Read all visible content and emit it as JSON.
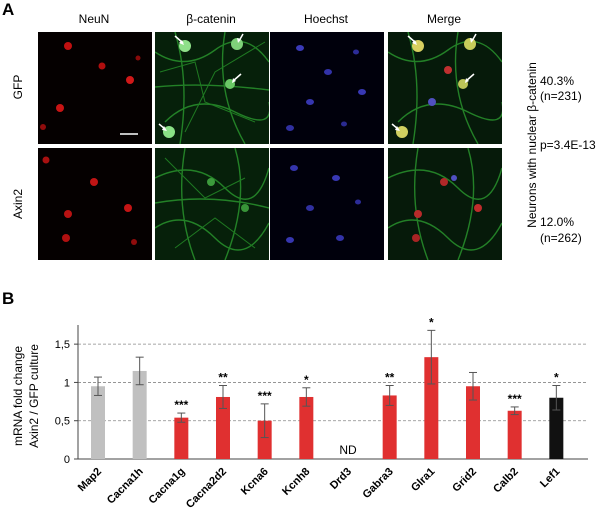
{
  "panelA": {
    "letter": "A",
    "columns": [
      "NeuN",
      "β-catenin",
      "Hoechst",
      "Merge"
    ],
    "rows": [
      "GFP",
      "Axin2"
    ],
    "right_axis_label": "Neurons with nuclear β-catenin",
    "stats": {
      "gfp_pct": "40.3%",
      "gfp_n": "(n=231)",
      "pvalue": "p=3.4E-13",
      "axin_pct": "12.0%",
      "axin_n": "(n=262)"
    }
  },
  "panelB": {
    "letter": "B",
    "ylabel_line1": "mRNA fold change",
    "ylabel_line2": "Axin2 / GFP culture"
  },
  "chart_data": {
    "type": "bar",
    "categories": [
      "Map2",
      "Cacna1h",
      "Cacna1g",
      "Cacna2d2",
      "Kcna6",
      "Kcnh8",
      "Drd3",
      "Gabra3",
      "Glra1",
      "Grid2",
      "Calb2",
      "Lef1"
    ],
    "values": [
      0.95,
      1.15,
      0.54,
      0.81,
      0.5,
      0.81,
      null,
      0.83,
      1.33,
      0.95,
      0.63,
      0.8
    ],
    "errors": [
      0.12,
      0.18,
      0.06,
      0.15,
      0.22,
      0.12,
      null,
      0.13,
      0.35,
      0.18,
      0.05,
      0.16
    ],
    "significance": [
      "",
      "",
      "***",
      "**",
      "***",
      "*",
      "ND",
      "**",
      "*",
      "",
      "***",
      "*"
    ],
    "bar_colors": [
      "#c0c0c0",
      "#c0c0c0",
      "#e03030",
      "#e03030",
      "#e03030",
      "#e03030",
      "#e03030",
      "#e03030",
      "#e03030",
      "#e03030",
      "#e03030",
      "#111111"
    ],
    "yticks": [
      "0",
      "0,5",
      "1",
      "1,5"
    ],
    "ylim": [
      0,
      1.75
    ],
    "grid": "dashed horizontal at 0.5, 1, 1.5"
  }
}
